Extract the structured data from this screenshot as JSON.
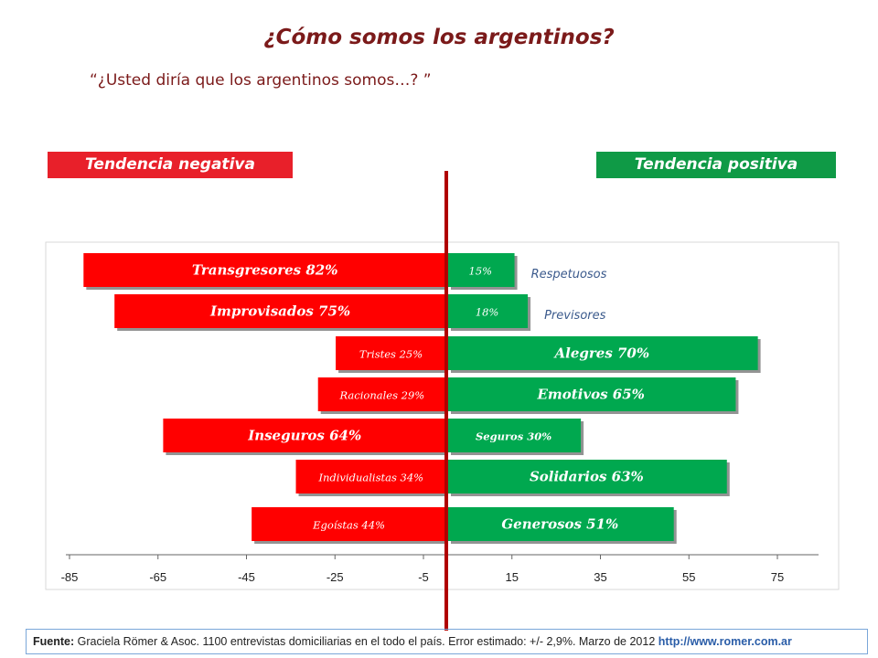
{
  "title": "¿Cómo somos los argentinos?",
  "question": "“¿Usted diría que los argentinos somos…? ”",
  "tendencies": {
    "negative": "Tendencia negativa",
    "positive": "Tendencia positiva"
  },
  "footer": {
    "label": "Fuente:",
    "text": " Graciela Römer & Asoc. 1100 entrevistas domiciliarias en el todo el país. Error estimado: +/- 2,9%. Marzo de 2012 ",
    "url": "http://www.romer.com.ar"
  },
  "colors": {
    "negative": "#ff0000",
    "positive": "#00a84f",
    "axis_line": "#b00000",
    "title": "#7b1a1a"
  },
  "chart_data": {
    "type": "bar",
    "orientation": "horizontal-diverging",
    "x_ticks": [
      "-85",
      "-65",
      "-45",
      "-25",
      "-5",
      "15",
      "35",
      "55",
      "75"
    ],
    "xlim": [
      -85,
      80
    ],
    "grid": false,
    "rows": [
      {
        "negative": {
          "label": "Transgresores 82%",
          "value": 82
        },
        "positive": {
          "label": "15%",
          "value": 15
        },
        "positive_outside_label": "Respetuosos"
      },
      {
        "negative": {
          "label": "Improvisados 75%",
          "value": 75
        },
        "positive": {
          "label": "18%",
          "value": 18
        },
        "positive_outside_label": "Previsores"
      },
      {
        "negative": {
          "label": "Tristes 25%",
          "value": 25
        },
        "positive": {
          "label": "Alegres 70%",
          "value": 70
        }
      },
      {
        "negative": {
          "label": "Racionales 29%",
          "value": 29
        },
        "positive": {
          "label": "Emotivos 65%",
          "value": 65
        }
      },
      {
        "negative": {
          "label": "Inseguros 64%",
          "value": 64
        },
        "positive": {
          "label": "Seguros 30%",
          "value": 30
        }
      },
      {
        "negative": {
          "label": "Individualistas 34%",
          "value": 34
        },
        "positive": {
          "label": "Solidarios 63%",
          "value": 63
        }
      },
      {
        "negative": {
          "label": "Egoístas 44%",
          "value": 44
        },
        "positive": {
          "label": "Generosos 51%",
          "value": 51
        }
      }
    ]
  }
}
